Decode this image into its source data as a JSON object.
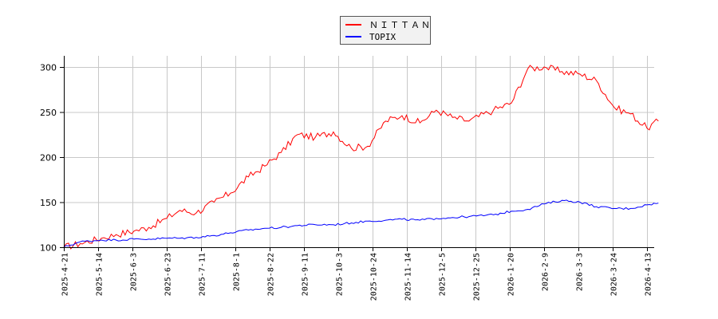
{
  "chart_data": {
    "type": "line",
    "title": "",
    "xlabel": "",
    "ylabel": "",
    "ylim": [
      100,
      310
    ],
    "yticks": [
      100,
      150,
      200,
      250,
      300
    ],
    "grid": true,
    "legend_position": "top-center",
    "x_tick_labels": [
      "2025-4-21",
      "2025-5-14",
      "2025-6-3",
      "2025-6-23",
      "2025-7-11",
      "2025-8-1",
      "2025-8-22",
      "2025-9-11",
      "2025-10-3",
      "2025-10-24",
      "2025-11-14",
      "2025-12-5",
      "2025-12-25",
      "2026-1-20",
      "2026-2-9",
      "2026-3-3",
      "2026-3-24",
      "2026-4-13"
    ],
    "x": [
      "2025-4-21",
      "2025-5-1",
      "2025-5-14",
      "2025-5-23",
      "2025-6-3",
      "2025-6-12",
      "2025-6-23",
      "2025-7-1",
      "2025-7-11",
      "2025-7-22",
      "2025-8-1",
      "2025-8-12",
      "2025-8-22",
      "2025-9-1",
      "2025-9-11",
      "2025-9-22",
      "2025-10-3",
      "2025-10-14",
      "2025-10-24",
      "2025-11-4",
      "2025-11-14",
      "2025-11-25",
      "2025-12-5",
      "2025-12-15",
      "2025-12-25",
      "2026-1-9",
      "2026-1-20",
      "2026-1-30",
      "2026-2-9",
      "2026-2-20",
      "2026-3-3",
      "2026-3-13",
      "2026-3-24",
      "2026-4-3",
      "2026-4-13",
      "2026-4-20"
    ],
    "series": [
      {
        "name": "ＮＩＴＴＡＮ",
        "color": "#ff0000",
        "values": [
          100,
          104,
          110,
          114,
          118,
          122,
          132,
          141,
          138,
          150,
          160,
          178,
          190,
          205,
          225,
          222,
          228,
          210,
          212,
          240,
          246,
          238,
          252,
          244,
          240,
          252,
          260,
          298,
          300,
          295,
          292,
          285,
          255,
          248,
          232,
          240
        ]
      },
      {
        "name": "TOPIX",
        "color": "#0000ff",
        "values": [
          100,
          106,
          108,
          108,
          109,
          109,
          110,
          110,
          111,
          113,
          116,
          119,
          121,
          122,
          124,
          125,
          125,
          127,
          129,
          130,
          131,
          130,
          132,
          133,
          134,
          136,
          140,
          142,
          148,
          152,
          150,
          145,
          143,
          143,
          147,
          149
        ]
      }
    ]
  },
  "legend": {
    "items": [
      {
        "label": "ＮＩＴＴＡＮ",
        "color": "#ff0000"
      },
      {
        "label": "TOPIX",
        "color": "#0000ff"
      }
    ]
  }
}
